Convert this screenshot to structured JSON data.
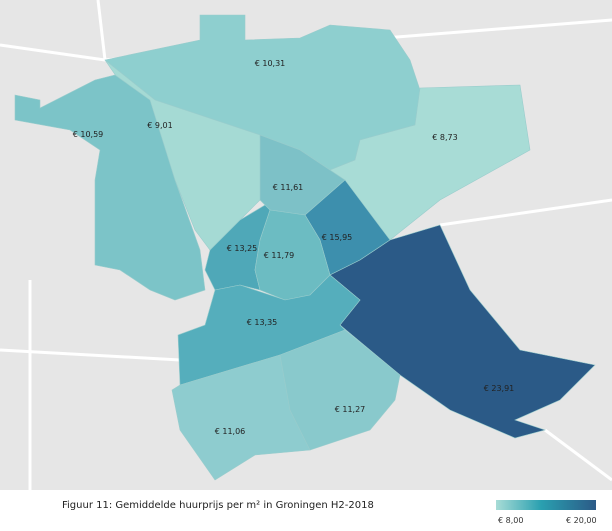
{
  "regions": [
    {
      "label": "€ 10,31",
      "color": "#8ecfcf"
    },
    {
      "label": "€ 8,73",
      "color": "#a8dcd6"
    },
    {
      "label": "€ 9,01",
      "color": "#a5dad4"
    },
    {
      "label": "€ 10,59",
      "color": "#7cc4c8"
    },
    {
      "label": "€ 11,61",
      "color": "#7dc1c7"
    },
    {
      "label": "€ 15,95",
      "color": "#3d8fad"
    },
    {
      "label": "€ 23,91",
      "color": "#2b5a87"
    },
    {
      "label": "€ 13,25",
      "color": "#4fa8b8"
    },
    {
      "label": "€ 11,79",
      "color": "#6cbcc2"
    },
    {
      "label": "€ 13,35",
      "color": "#55aebc"
    },
    {
      "label": "€ 11,06",
      "color": "#8ecccf"
    },
    {
      "label": "€ 11,27",
      "color": "#89c9cc"
    }
  ],
  "caption": "Figuur 11: Gemiddelde huurprijs per m² in Groningen H2-2018",
  "legend": {
    "min_label": "€ 8,00",
    "max_label": "€ 20,00"
  }
}
